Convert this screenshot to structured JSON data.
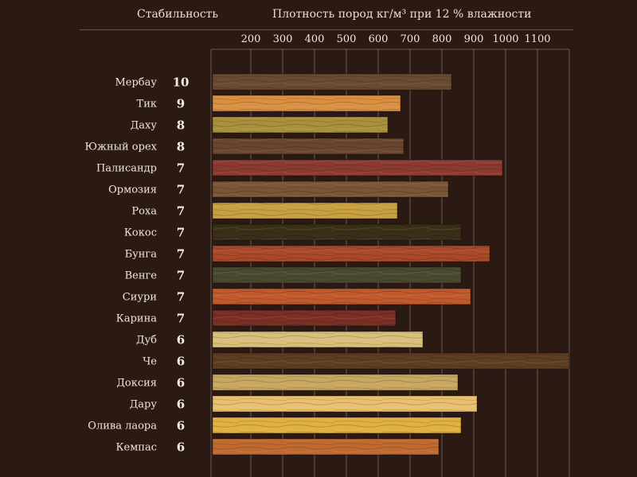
{
  "header": {
    "stability_title": "Стабильность",
    "density_title": "Плотность пород кг/м³ при 12 % влажности"
  },
  "chart_data": {
    "type": "bar",
    "orientation": "horizontal",
    "xlabel": "Плотность пород кг/м³ при 12 % влажности",
    "xlim": [
      75,
      1200
    ],
    "xticks": [
      200,
      300,
      400,
      500,
      600,
      700,
      800,
      900,
      1000,
      1100
    ],
    "xtick_labels": [
      "200",
      "300",
      "400",
      "500",
      "600",
      "700",
      "800",
      "900",
      "1000",
      "1100"
    ],
    "grid": true,
    "categories": [
      "Мербау",
      "Тик",
      "Даху",
      "Южный орех",
      "Палисандр",
      "Ормозия",
      "Роха",
      "Кокос",
      "Бунга",
      "Венге",
      "Сиури",
      "Карина",
      "Дуб",
      "Че",
      "Доксия",
      "Дару",
      "Олива лаора",
      "Кемпас"
    ],
    "values": [
      830,
      670,
      630,
      680,
      990,
      820,
      660,
      860,
      950,
      860,
      890,
      655,
      740,
      1200,
      850,
      910,
      860,
      790
    ],
    "stability": [
      "10",
      "9",
      "8",
      "8",
      "7",
      "7",
      "7",
      "7",
      "7",
      "7",
      "7",
      "7",
      "6",
      "6",
      "6",
      "6",
      "6",
      "6"
    ],
    "colors": [
      "#6a4a30",
      "#d99040",
      "#a8903c",
      "#6a4530",
      "#8a3a30",
      "#7a5536",
      "#c9a040",
      "#3a3018",
      "#a84a28",
      "#4a4a30",
      "#c05a2c",
      "#7a2e24",
      "#d9c07a",
      "#5e3e22",
      "#c8a860",
      "#e8c070",
      "#e0b040",
      "#c06a30"
    ]
  }
}
